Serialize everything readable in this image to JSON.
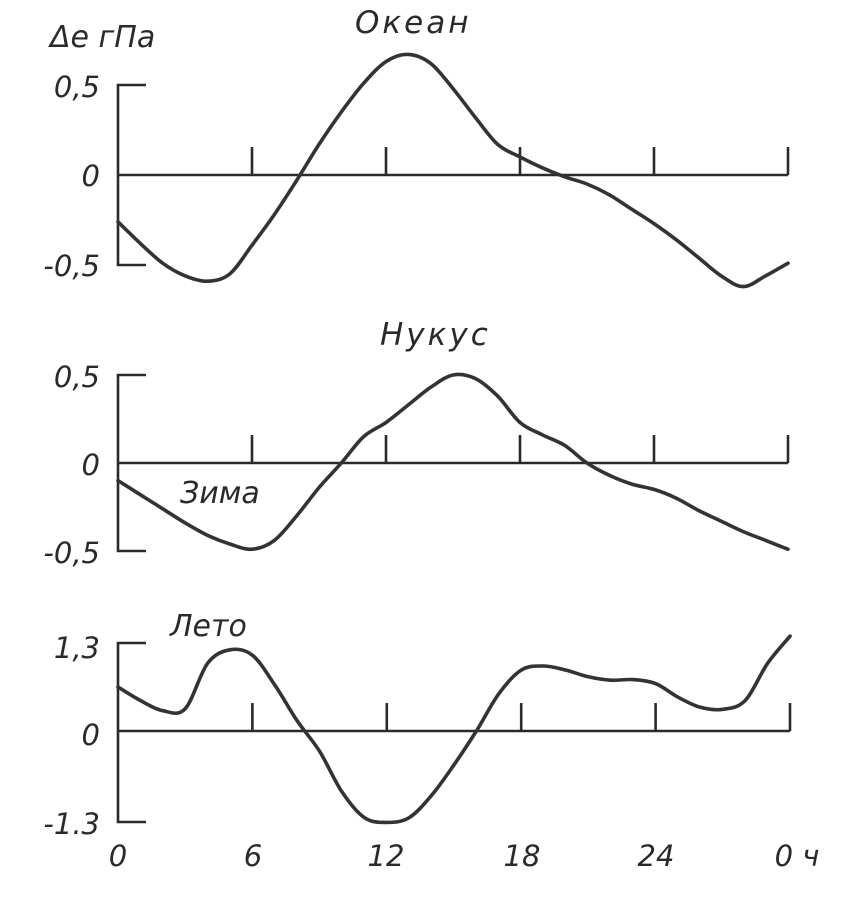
{
  "ylabel": "Δе гПа",
  "chart_data": [
    {
      "type": "line",
      "title": "Океан",
      "season_label": "",
      "ylabel": "Δе гПа",
      "y_ticks": [
        "0,5",
        "0",
        "-0,5"
      ],
      "ylim": [
        -0.5,
        0.5
      ],
      "xlim": [
        0,
        30
      ],
      "x": [
        0,
        1,
        2,
        3,
        4,
        5,
        6,
        7,
        8,
        9,
        10,
        11,
        12,
        13,
        14,
        15,
        16,
        17,
        18,
        19,
        20,
        21,
        22,
        23,
        24,
        25,
        26,
        27,
        28,
        29,
        30
      ],
      "series": [
        {
          "values": [
            -0.26,
            -0.38,
            -0.49,
            -0.56,
            -0.59,
            -0.55,
            -0.39,
            -0.22,
            -0.03,
            0.17,
            0.35,
            0.51,
            0.63,
            0.67,
            0.62,
            0.48,
            0.32,
            0.17,
            0.1,
            0.04,
            -0.01,
            -0.05,
            -0.11,
            -0.19,
            -0.27,
            -0.36,
            -0.46,
            -0.56,
            -0.62,
            -0.56,
            -0.49
          ]
        }
      ]
    },
    {
      "type": "line",
      "title": "Нукус",
      "season_label": "Зима",
      "y_ticks": [
        "0,5",
        "0",
        "-0,5"
      ],
      "ylim": [
        -0.5,
        0.5
      ],
      "xlim": [
        0,
        30
      ],
      "x": [
        0,
        1,
        2,
        3,
        4,
        5,
        6,
        7,
        8,
        9,
        10,
        11,
        12,
        13,
        14,
        15,
        16,
        17,
        18,
        19,
        20,
        21,
        22,
        23,
        24,
        25,
        26,
        27,
        28,
        29,
        30
      ],
      "series": [
        {
          "values": [
            -0.1,
            -0.18,
            -0.26,
            -0.34,
            -0.41,
            -0.46,
            -0.49,
            -0.44,
            -0.3,
            -0.14,
            0.0,
            0.15,
            0.23,
            0.33,
            0.43,
            0.5,
            0.48,
            0.38,
            0.23,
            0.16,
            0.1,
            0.0,
            -0.07,
            -0.12,
            -0.15,
            -0.2,
            -0.27,
            -0.33,
            -0.39,
            -0.44,
            -0.49
          ]
        }
      ]
    },
    {
      "type": "line",
      "title": "",
      "season_label": "Лето",
      "y_ticks": [
        "1,3",
        "0",
        "-1.3"
      ],
      "ylim": [
        -1.3,
        1.3
      ],
      "x_ticks": [
        "0",
        "6",
        "12",
        "18",
        "24",
        "0 ч"
      ],
      "xlim": [
        0,
        30
      ],
      "x": [
        0,
        1,
        2,
        3,
        4,
        5,
        6,
        7,
        8,
        9,
        10,
        11,
        12,
        13,
        14,
        15,
        16,
        17,
        18,
        19,
        20,
        21,
        22,
        23,
        24,
        25,
        26,
        27,
        28,
        29,
        30
      ],
      "series": [
        {
          "values": [
            0.65,
            0.45,
            0.3,
            0.33,
            1.0,
            1.2,
            1.12,
            0.68,
            0.15,
            -0.3,
            -0.9,
            -1.28,
            -1.35,
            -1.28,
            -0.95,
            -0.5,
            0.0,
            0.55,
            0.9,
            0.96,
            0.9,
            0.8,
            0.75,
            0.76,
            0.7,
            0.5,
            0.35,
            0.32,
            0.45,
            1.0,
            1.4
          ]
        }
      ]
    }
  ]
}
